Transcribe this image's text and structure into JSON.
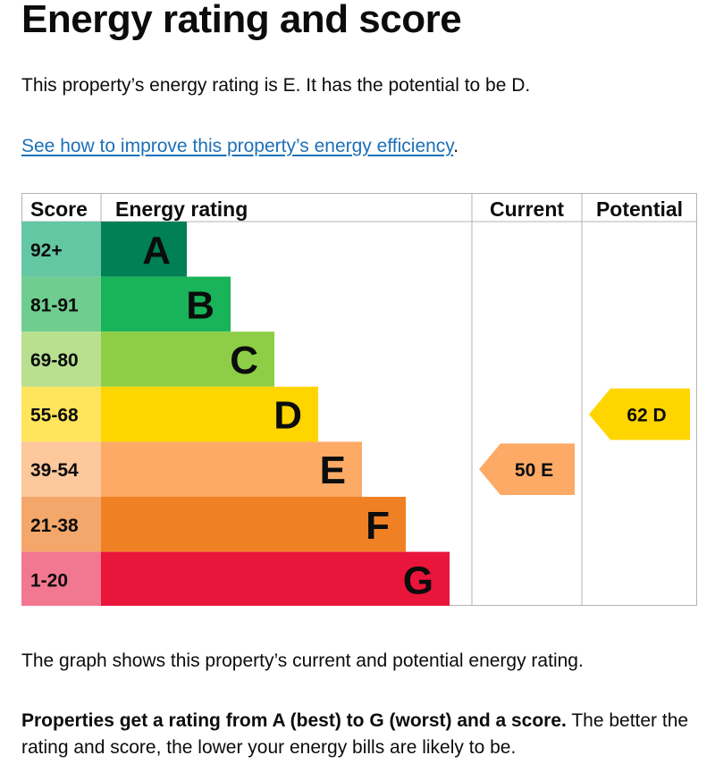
{
  "page": {
    "title": "Energy rating and score",
    "summary": "This property’s energy rating is E. It has the potential to be D.",
    "improve_link": "See how to improve this property’s energy efficiency",
    "improve_suffix": ".",
    "graph_note": "The graph shows this property’s current and potential energy rating.",
    "explain_bold": "Properties get a rating from A (best) to G (worst) and a score.",
    "explain_rest": " The better the rating and score, the lower your energy bills are likely to be."
  },
  "chart_data": {
    "type": "bar",
    "headers": {
      "score": "Score",
      "rating": "Energy rating",
      "current": "Current",
      "potential": "Potential"
    },
    "bands": [
      {
        "letter": "A",
        "range": "92+",
        "color": "#008054",
        "light": "#64c7a3"
      },
      {
        "letter": "B",
        "range": "81-91",
        "color": "#19b459",
        "light": "#6fce8f"
      },
      {
        "letter": "C",
        "range": "69-80",
        "color": "#8dce46",
        "light": "#b8e08e"
      },
      {
        "letter": "D",
        "range": "55-68",
        "color": "#ffd500",
        "light": "#ffe55c"
      },
      {
        "letter": "E",
        "range": "39-54",
        "color": "#fcaa65",
        "light": "#fdc89b"
      },
      {
        "letter": "F",
        "range": "21-38",
        "color": "#ef8023",
        "light": "#f4a76a"
      },
      {
        "letter": "G",
        "range": "1-20",
        "color": "#e9153b",
        "light": "#f27891"
      }
    ],
    "current": {
      "score": 50,
      "letter": "E",
      "label": "50  E",
      "color": "#fcaa65"
    },
    "potential": {
      "score": 62,
      "letter": "D",
      "label": "62  D",
      "color": "#ffd500"
    }
  }
}
